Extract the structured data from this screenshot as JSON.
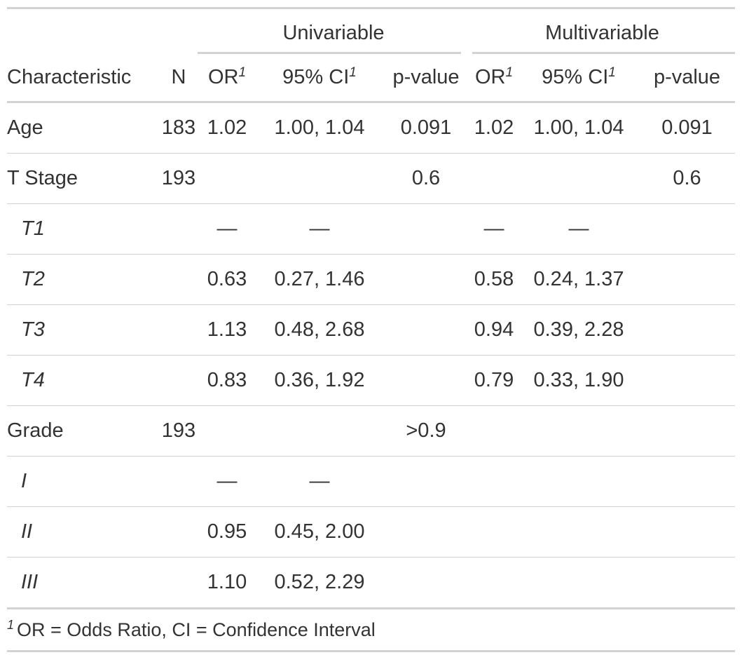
{
  "spanners": {
    "univariable": "Univariable",
    "multivariable": "Multivariable"
  },
  "headers": {
    "characteristic": "Characteristic",
    "n": "N",
    "or": "OR",
    "ci": "95% CI",
    "p_value": "p-value",
    "footnote_mark": "1"
  },
  "rows": [
    {
      "label": "Age",
      "n": "183",
      "u_or": "1.02",
      "u_ci": "1.00, 1.04",
      "u_p": "0.091",
      "m_or": "1.02",
      "m_ci": "1.00, 1.04",
      "m_p": "0.091",
      "level": false
    },
    {
      "label": "T Stage",
      "n": "193",
      "u_or": "",
      "u_ci": "",
      "u_p": "0.6",
      "m_or": "",
      "m_ci": "",
      "m_p": "0.6",
      "level": false
    },
    {
      "label": "T1",
      "n": "",
      "u_or": "—",
      "u_ci": "—",
      "u_p": "",
      "m_or": "—",
      "m_ci": "—",
      "m_p": "",
      "level": true
    },
    {
      "label": "T2",
      "n": "",
      "u_or": "0.63",
      "u_ci": "0.27, 1.46",
      "u_p": "",
      "m_or": "0.58",
      "m_ci": "0.24, 1.37",
      "m_p": "",
      "level": true
    },
    {
      "label": "T3",
      "n": "",
      "u_or": "1.13",
      "u_ci": "0.48, 2.68",
      "u_p": "",
      "m_or": "0.94",
      "m_ci": "0.39, 2.28",
      "m_p": "",
      "level": true
    },
    {
      "label": "T4",
      "n": "",
      "u_or": "0.83",
      "u_ci": "0.36, 1.92",
      "u_p": "",
      "m_or": "0.79",
      "m_ci": "0.33, 1.90",
      "m_p": "",
      "level": true
    },
    {
      "label": "Grade",
      "n": "193",
      "u_or": "",
      "u_ci": "",
      "u_p": ">0.9",
      "m_or": "",
      "m_ci": "",
      "m_p": "",
      "level": false
    },
    {
      "label": "I",
      "n": "",
      "u_or": "—",
      "u_ci": "—",
      "u_p": "",
      "m_or": "",
      "m_ci": "",
      "m_p": "",
      "level": true
    },
    {
      "label": "II",
      "n": "",
      "u_or": "0.95",
      "u_ci": "0.45, 2.00",
      "u_p": "",
      "m_or": "",
      "m_ci": "",
      "m_p": "",
      "level": true
    },
    {
      "label": "III",
      "n": "",
      "u_or": "1.10",
      "u_ci": "0.52, 2.29",
      "u_p": "",
      "m_or": "",
      "m_ci": "",
      "m_p": "",
      "level": true
    }
  ],
  "footnote": {
    "mark": "1",
    "text": "OR = Odds Ratio, CI = Confidence Interval"
  }
}
